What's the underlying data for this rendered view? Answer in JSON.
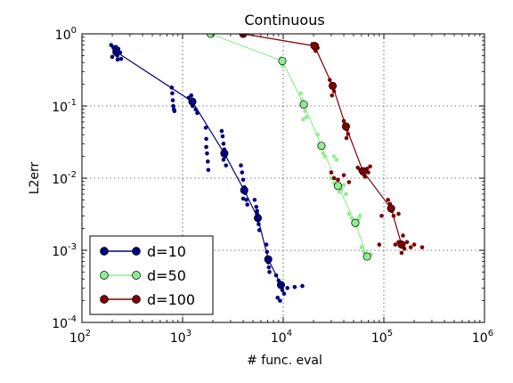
{
  "chart_data": {
    "type": "scatter",
    "title": "Continuous",
    "xlabel": "# func. eval",
    "ylabel": "L2err",
    "x_scale": "log",
    "y_scale": "log",
    "xlim": [
      100,
      1000000
    ],
    "ylim": [
      0.0001,
      1
    ],
    "grid": true,
    "legend_position": "lower-left",
    "x_ticks": [
      100,
      1000,
      10000,
      100000,
      1000000
    ],
    "x_tick_labels": [
      {
        "base": "10",
        "exp": "2"
      },
      {
        "base": "10",
        "exp": "3"
      },
      {
        "base": "10",
        "exp": "4"
      },
      {
        "base": "10",
        "exp": "5"
      },
      {
        "base": "10",
        "exp": "6"
      }
    ],
    "y_ticks": [
      0.0001,
      0.001,
      0.01,
      0.1,
      1
    ],
    "y_tick_labels": [
      {
        "base": "10",
        "exp": "-4"
      },
      {
        "base": "10",
        "exp": "-3"
      },
      {
        "base": "10",
        "exp": "-2"
      },
      {
        "base": "10",
        "exp": "-1"
      },
      {
        "base": "10",
        "exp": "0"
      }
    ],
    "series": [
      {
        "name": "d=10",
        "color": "#000080",
        "marker_face": "#000080",
        "mean": [
          [
            220,
            0.56
          ],
          [
            1250,
            0.115
          ],
          [
            2600,
            0.022
          ],
          [
            4100,
            0.0068
          ],
          [
            5600,
            0.0028
          ],
          [
            7100,
            0.00075
          ],
          [
            9500,
            0.00033
          ]
        ],
        "samples": [
          [
            195,
            0.7
          ],
          [
            205,
            0.65
          ],
          [
            210,
            0.6
          ],
          [
            215,
            0.55
          ],
          [
            220,
            0.52
          ],
          [
            225,
            0.5
          ],
          [
            200,
            0.48
          ],
          [
            230,
            0.62
          ],
          [
            240,
            0.55
          ],
          [
            245,
            0.45
          ],
          [
            212,
            0.58
          ],
          [
            218,
            0.66
          ],
          [
            226,
            0.44
          ],
          [
            780,
            0.18
          ],
          [
            790,
            0.15
          ],
          [
            800,
            0.12
          ],
          [
            810,
            0.1
          ],
          [
            820,
            0.09
          ],
          [
            830,
            0.085
          ],
          [
            1150,
            0.13
          ],
          [
            1200,
            0.12
          ],
          [
            1230,
            0.11
          ],
          [
            1260,
            0.1
          ],
          [
            1300,
            0.115
          ],
          [
            1350,
            0.09
          ],
          [
            1400,
            0.08
          ],
          [
            1220,
            0.14
          ],
          [
            1700,
            0.05
          ],
          [
            1720,
            0.035
          ],
          [
            1750,
            0.022
          ],
          [
            1780,
            0.017
          ],
          [
            1800,
            0.013
          ],
          [
            1720,
            0.027
          ],
          [
            2450,
            0.045
          ],
          [
            2500,
            0.038
          ],
          [
            2550,
            0.03
          ],
          [
            2600,
            0.025
          ],
          [
            2650,
            0.02
          ],
          [
            2700,
            0.015
          ],
          [
            2550,
            0.018
          ],
          [
            3800,
            0.015
          ],
          [
            3900,
            0.012
          ],
          [
            4000,
            0.0095
          ],
          [
            4100,
            0.0075
          ],
          [
            4200,
            0.0062
          ],
          [
            4300,
            0.005
          ],
          [
            4400,
            0.0043
          ],
          [
            4000,
            0.0052
          ],
          [
            5200,
            0.005
          ],
          [
            5400,
            0.004
          ],
          [
            5500,
            0.0032
          ],
          [
            5600,
            0.0026
          ],
          [
            5700,
            0.0023
          ],
          [
            5800,
            0.0019
          ],
          [
            5500,
            0.0035
          ],
          [
            6800,
            0.0012
          ],
          [
            6900,
            0.00095
          ],
          [
            7000,
            0.0008
          ],
          [
            7100,
            0.00068
          ],
          [
            7200,
            0.00058
          ],
          [
            7300,
            0.0005
          ],
          [
            7000,
            0.00072
          ],
          [
            8500,
            0.00045
          ],
          [
            9000,
            0.00038
          ],
          [
            9200,
            0.00034
          ],
          [
            9500,
            0.00031
          ],
          [
            9800,
            0.00028
          ],
          [
            10200,
            0.00025
          ],
          [
            11000,
            0.0003
          ],
          [
            13000,
            0.00031
          ],
          [
            15500,
            0.00032
          ],
          [
            8800,
            0.00022
          ],
          [
            9300,
            0.0002
          ]
        ]
      },
      {
        "name": "d=50",
        "color": "#90ee90",
        "marker_face": "#90ee90",
        "mean": [
          [
            1900,
            1.0
          ],
          [
            9800,
            0.42
          ],
          [
            16000,
            0.105
          ],
          [
            24000,
            0.028
          ],
          [
            35000,
            0.0078
          ],
          [
            52000,
            0.0024
          ],
          [
            68000,
            0.00082
          ]
        ],
        "samples": [
          [
            9500,
            0.46
          ],
          [
            9600,
            0.4
          ],
          [
            9900,
            0.36
          ],
          [
            10100,
            0.44
          ],
          [
            15000,
            0.15
          ],
          [
            15500,
            0.12
          ],
          [
            16000,
            0.1
          ],
          [
            16500,
            0.085
          ],
          [
            17000,
            0.07
          ],
          [
            15800,
            0.065
          ],
          [
            22000,
            0.04
          ],
          [
            23000,
            0.03
          ],
          [
            24000,
            0.026
          ],
          [
            25000,
            0.022
          ],
          [
            26000,
            0.02
          ],
          [
            32000,
            0.02
          ],
          [
            34000,
            0.018
          ],
          [
            30000,
            0.01
          ],
          [
            32000,
            0.0085
          ],
          [
            34000,
            0.0075
          ],
          [
            36000,
            0.0065
          ],
          [
            38000,
            0.007
          ],
          [
            40000,
            0.008
          ],
          [
            42000,
            0.006
          ],
          [
            45000,
            0.0032
          ],
          [
            48000,
            0.0028
          ],
          [
            50000,
            0.0025
          ],
          [
            52000,
            0.0023
          ],
          [
            54000,
            0.0022
          ],
          [
            56000,
            0.0027
          ],
          [
            58000,
            0.003
          ],
          [
            60000,
            0.0011
          ],
          [
            63000,
            0.00095
          ],
          [
            66000,
            0.00085
          ],
          [
            68000,
            0.0008
          ],
          [
            70000,
            0.00078
          ],
          [
            74000,
            0.00088
          ]
        ]
      },
      {
        "name": "d=100",
        "color": "#800000",
        "marker_face": "#800000",
        "mean": [
          [
            4000,
            1.0
          ],
          [
            20500,
            0.68
          ],
          [
            31000,
            0.19
          ],
          [
            42000,
            0.052
          ],
          [
            62000,
            0.0125
          ],
          [
            118000,
            0.0038
          ],
          [
            150000,
            0.0012
          ]
        ],
        "samples": [
          [
            19500,
            0.72
          ],
          [
            20000,
            0.66
          ],
          [
            20500,
            0.62
          ],
          [
            21000,
            0.58
          ],
          [
            21500,
            0.7
          ],
          [
            22000,
            0.64
          ],
          [
            29000,
            0.23
          ],
          [
            30000,
            0.2
          ],
          [
            31000,
            0.18
          ],
          [
            32000,
            0.16
          ],
          [
            30500,
            0.14
          ],
          [
            40000,
            0.062
          ],
          [
            41000,
            0.056
          ],
          [
            42000,
            0.052
          ],
          [
            43000,
            0.047
          ],
          [
            44000,
            0.041
          ],
          [
            42500,
            0.036
          ],
          [
            30000,
            0.012
          ],
          [
            32000,
            0.01
          ],
          [
            35000,
            0.0095
          ],
          [
            40000,
            0.011
          ],
          [
            45000,
            0.0088
          ],
          [
            55000,
            0.014
          ],
          [
            58000,
            0.013
          ],
          [
            60000,
            0.012
          ],
          [
            62000,
            0.0115
          ],
          [
            65000,
            0.0105
          ],
          [
            68000,
            0.0135
          ],
          [
            70000,
            0.012
          ],
          [
            73000,
            0.0145
          ],
          [
            110000,
            0.005
          ],
          [
            115000,
            0.0044
          ],
          [
            118000,
            0.004
          ],
          [
            120000,
            0.0035
          ],
          [
            125000,
            0.003
          ],
          [
            95000,
            0.003
          ],
          [
            140000,
            0.0032
          ],
          [
            140000,
            0.0013
          ],
          [
            145000,
            0.0012
          ],
          [
            150000,
            0.00118
          ],
          [
            155000,
            0.00112
          ],
          [
            160000,
            0.00105
          ],
          [
            170000,
            0.0013
          ],
          [
            185000,
            0.0011
          ],
          [
            200000,
            0.0012
          ],
          [
            240000,
            0.0011
          ],
          [
            150000,
            0.00092
          ],
          [
            155000,
            0.0016
          ],
          [
            130000,
            0.0012
          ],
          [
            90000,
            0.0012
          ]
        ]
      }
    ]
  }
}
